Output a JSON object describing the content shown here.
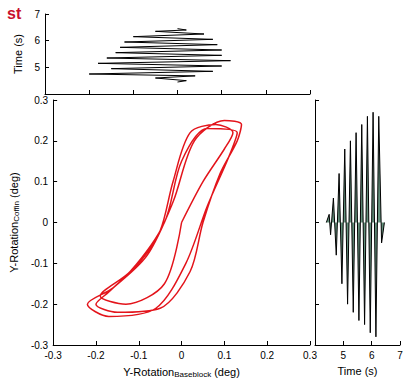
{
  "chart_data": [
    {
      "type": "line",
      "title": "st",
      "xlabel": {
        "text": "Y-Rotation",
        "subscript": "Baseblock",
        "suffix": " (deg)"
      },
      "ylabel": {
        "text": "Y-Rotation",
        "subscript": "Coffin",
        "suffix": " (deg)"
      },
      "x": [
        0,
        0.05,
        0.1,
        0.12,
        0.08,
        0.02,
        -0.02,
        -0.05,
        -0.1,
        -0.17,
        -0.2,
        -0.15,
        -0.05,
        0.02,
        0.05,
        0.09,
        0.13,
        0.14,
        0.1,
        0.03,
        -0.02,
        -0.08,
        -0.16,
        -0.22,
        -0.17,
        -0.06,
        0.01,
        0.06,
        0.11,
        0.13,
        0.06,
        0,
        -0.04,
        -0.12,
        -0.19,
        -0.13,
        -0.04,
        0
      ],
      "values": [
        0,
        0.1,
        0.18,
        0.22,
        0.24,
        0.22,
        0.1,
        -0.02,
        -0.1,
        -0.17,
        -0.2,
        -0.22,
        -0.21,
        -0.12,
        0,
        0.12,
        0.2,
        0.24,
        0.25,
        0.2,
        0.05,
        -0.08,
        -0.16,
        -0.2,
        -0.23,
        -0.21,
        -0.1,
        0.04,
        0.16,
        0.22,
        0.23,
        0.15,
        0,
        -0.12,
        -0.18,
        -0.2,
        -0.15,
        0
      ],
      "color": "#e3141b",
      "xlim": [
        -0.3,
        0.3
      ],
      "xticks": [
        -0.3,
        -0.2,
        -0.1,
        0,
        0.1,
        0.2,
        0.3
      ],
      "ylim": [
        -0.3,
        0.3
      ],
      "yticks": [
        -0.3,
        -0.2,
        -0.1,
        0,
        0.1,
        0.2,
        0.3
      ],
      "grid": false
    },
    {
      "type": "line",
      "ylabel": "Time (s)",
      "x": [
        0,
        0.02,
        -0.05,
        0.04,
        -0.2,
        0.08,
        -0.15,
        0.1,
        -0.18,
        0.12,
        -0.16,
        0.1,
        -0.14,
        0.1,
        -0.13,
        0.09,
        -0.12,
        0.08,
        -0.1,
        0.06,
        -0.05,
        0.02,
        0
      ],
      "values": [
        4.45,
        4.5,
        4.6,
        4.68,
        4.75,
        4.85,
        4.95,
        5.05,
        5.15,
        5.25,
        5.35,
        5.45,
        5.55,
        5.65,
        5.75,
        5.85,
        5.95,
        6.05,
        6.15,
        6.25,
        6.35,
        6.4,
        6.45
      ],
      "color": "#000000",
      "xlim": [
        -0.3,
        0.3
      ],
      "xticks": [
        -0.3,
        -0.2,
        -0.1,
        0,
        0.1,
        0.2,
        0.3
      ],
      "ylim": [
        4,
        7
      ],
      "yticks": [
        5,
        6,
        7
      ],
      "tick_labels": "y",
      "grid": false
    },
    {
      "type": "area",
      "xlabel": "Time (s)",
      "x": [
        4.4,
        4.5,
        4.55,
        4.65,
        4.75,
        4.85,
        4.95,
        5.05,
        5.15,
        5.25,
        5.35,
        5.45,
        5.55,
        5.65,
        5.75,
        5.85,
        5.95,
        6.05,
        6.15,
        6.25,
        6.35,
        6.45
      ],
      "values": [
        0,
        0.02,
        -0.03,
        0.06,
        -0.08,
        0.12,
        -0.15,
        0.18,
        -0.2,
        0.2,
        -0.22,
        0.22,
        -0.24,
        0.24,
        -0.25,
        0.26,
        -0.27,
        0.27,
        -0.28,
        0.26,
        -0.05,
        0
      ],
      "color": "#2e6b4f",
      "xlim": [
        4,
        7
      ],
      "xticks": [
        5,
        6,
        7
      ],
      "ylim": [
        -0.3,
        0.3
      ],
      "yticks": [
        -0.3,
        -0.2,
        -0.1,
        0,
        0.1,
        0.2,
        0.3
      ],
      "tick_labels": "x",
      "grid": false
    }
  ]
}
